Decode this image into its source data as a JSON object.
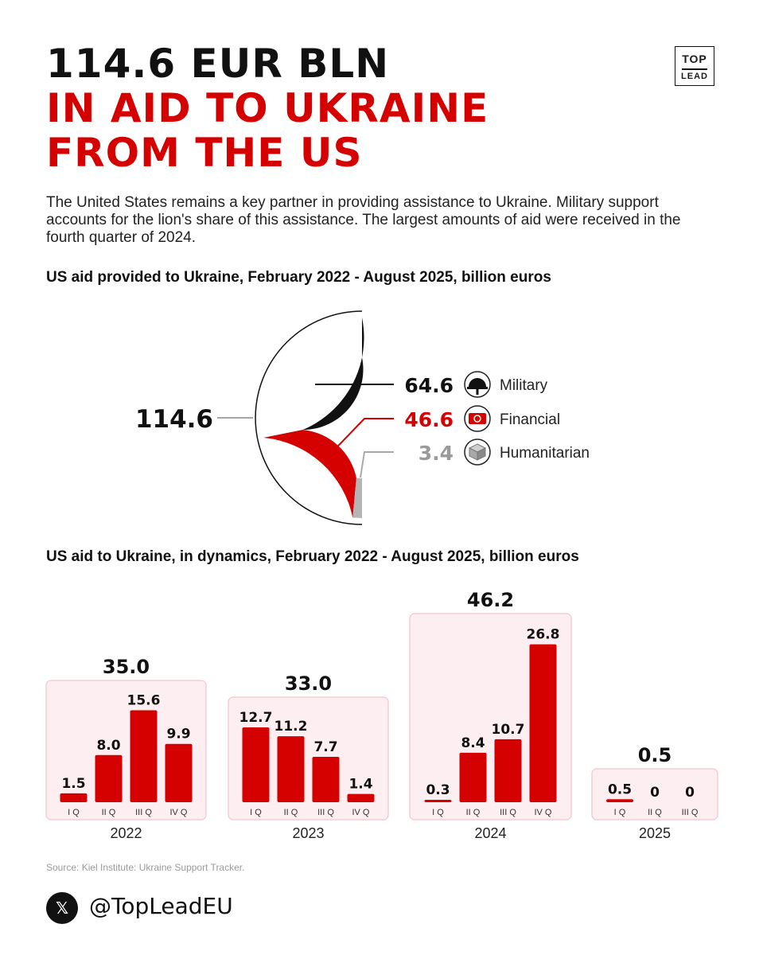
{
  "header": {
    "title_line1": "114.6 EUR BLN",
    "title_line2": "IN AID TO UKRAINE",
    "title_line3": "FROM THE US",
    "logo_top": "TOP",
    "logo_bottom": "LEAD",
    "intro": "The United States remains a key partner in providing assistance to Ukraine. Military support accounts for the lion's share of this assistance. The largest amounts of aid were received in the fourth quarter of 2024."
  },
  "colors": {
    "red": "#d50000",
    "black": "#111111",
    "gray": "#b5b5b5",
    "panel_bg": "#fdeef1",
    "panel_border": "#f3c4cc"
  },
  "chart_data": [
    {
      "type": "pie",
      "title": "US aid provided to Ukraine, February 2022 - August 2025, billion euros",
      "total": "114.6",
      "slices": [
        {
          "name": "Military",
          "value": 64.6,
          "label": "64.6",
          "color": "#111111",
          "icon": "helmet-icon"
        },
        {
          "name": "Financial",
          "value": 46.6,
          "label": "46.6",
          "color": "#d50000",
          "icon": "banknote-icon"
        },
        {
          "name": "Humanitarian",
          "value": 3.4,
          "label": "3.4",
          "color": "#b5b5b5",
          "icon": "box-icon"
        }
      ]
    },
    {
      "type": "bar",
      "title": "US aid to Ukraine, in dynamics, February 2022 - August 2025, billion euros",
      "groups": [
        {
          "year": "2022",
          "total": "35.0",
          "categories": [
            "I Q",
            "II Q",
            "III Q",
            "IV Q"
          ],
          "values": [
            1.5,
            8.0,
            15.6,
            9.9
          ],
          "labels": [
            "1.5",
            "8.0",
            "15.6",
            "9.9"
          ]
        },
        {
          "year": "2023",
          "total": "33.0",
          "categories": [
            "I Q",
            "II Q",
            "III Q",
            "IV Q"
          ],
          "values": [
            12.7,
            11.2,
            7.7,
            1.4
          ],
          "labels": [
            "12.7",
            "11.2",
            "7.7",
            "1.4"
          ]
        },
        {
          "year": "2024",
          "total": "46.2",
          "categories": [
            "I Q",
            "II Q",
            "III Q",
            "IV Q"
          ],
          "values": [
            0.3,
            8.4,
            10.7,
            26.8
          ],
          "labels": [
            "0.3",
            "8.4",
            "10.7",
            "26.8"
          ]
        },
        {
          "year": "2025",
          "total": "0.5",
          "categories": [
            "I Q",
            "II Q",
            "III Q"
          ],
          "values": [
            0.5,
            0,
            0
          ],
          "labels": [
            "0.5",
            "0",
            "0"
          ]
        }
      ]
    }
  ],
  "footer": {
    "source": "Source: Kiel Institute: Ukraine Support Tracker.",
    "x_glyph": "𝕏",
    "handle": "@TopLeadEU"
  }
}
